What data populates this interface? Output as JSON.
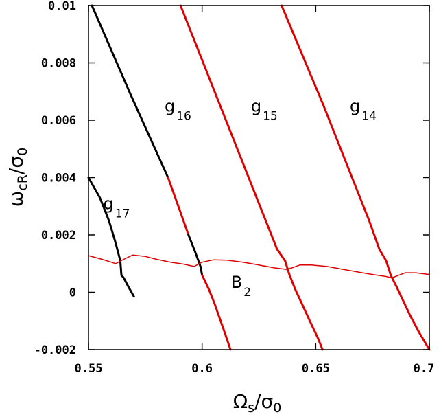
{
  "chart_data": {
    "type": "line",
    "xlabel": {
      "main": "Ω",
      "sub": "s",
      "den": "σ",
      "den_sub": "0"
    },
    "ylabel": {
      "main": "ω",
      "sub": "cR",
      "den": "σ",
      "den_sub": "0"
    },
    "xlim": [
      0.55,
      0.7
    ],
    "ylim": [
      -0.002,
      0.01
    ],
    "x_ticks": [
      0.55,
      0.6,
      0.65,
      0.7
    ],
    "x_tick_labels": [
      "0.55",
      "0.6",
      "0.65",
      "0.7"
    ],
    "y_ticks": [
      -0.002,
      0,
      0.002,
      0.004,
      0.006,
      0.008,
      0.01
    ],
    "y_tick_labels": [
      "-0.002",
      "0",
      "0.002",
      "0.004",
      "0.006",
      "0.008",
      "0.01"
    ],
    "grid": false,
    "legend": "none",
    "colors": {
      "stable": "#000000",
      "unstable": "#dd0000",
      "axis": "#000000"
    },
    "series": [
      {
        "id": "g17",
        "segments": [
          {
            "color": "#000000",
            "points": [
              [
                0.55,
                0.004
              ],
              [
                0.555,
                0.0033
              ],
              [
                0.559,
                0.0025
              ],
              [
                0.562,
                0.0017
              ],
              [
                0.564,
                0.0011
              ],
              [
                0.5645,
                0.0006
              ],
              [
                0.5655,
                0.0005
              ],
              [
                0.5675,
                0.0002
              ],
              [
                0.57,
                -0.00015
              ]
            ]
          }
        ]
      },
      {
        "id": "g16",
        "segments": [
          {
            "color": "#000000",
            "points": [
              [
                0.5515,
                0.01
              ],
              [
                0.5685,
                0.0069
              ],
              [
                0.585,
                0.004
              ]
            ]
          },
          {
            "color": "#dd0000",
            "points": [
              [
                0.585,
                0.004
              ],
              [
                0.59,
                0.0029
              ],
              [
                0.594,
                0.002
              ]
            ]
          },
          {
            "color": "#000000",
            "points": [
              [
                0.594,
                0.002
              ],
              [
                0.597,
                0.0014
              ],
              [
                0.5993,
                0.0009
              ],
              [
                0.6,
                0.0006
              ]
            ]
          },
          {
            "color": "#dd0000",
            "points": [
              [
                0.6,
                0.0006
              ],
              [
                0.603,
                0.0001
              ],
              [
                0.6055,
                -0.0004
              ],
              [
                0.6095,
                -0.0013
              ],
              [
                0.6125,
                -0.002
              ]
            ]
          }
        ]
      },
      {
        "id": "g15",
        "segments": [
          {
            "color": "#dd0000",
            "points": [
              [
                0.5905,
                0.01
              ],
              [
                0.6075,
                0.0066
              ],
              [
                0.621,
                0.0039
              ],
              [
                0.628,
                0.0025
              ],
              [
                0.633,
                0.0015
              ],
              [
                0.6365,
                0.0011
              ],
              [
                0.6385,
                0.0006
              ],
              [
                0.641,
                0.0001
              ],
              [
                0.6445,
                -0.0005
              ],
              [
                0.648,
                -0.0011
              ],
              [
                0.651,
                -0.0016
              ],
              [
                0.653,
                -0.002
              ]
            ]
          }
        ]
      },
      {
        "id": "g14",
        "segments": [
          {
            "color": "#dd0000",
            "points": [
              [
                0.635,
                0.01
              ],
              [
                0.6535,
                0.0065
              ],
              [
                0.666,
                0.004
              ],
              [
                0.6735,
                0.0025
              ],
              [
                0.678,
                0.0015
              ],
              [
                0.681,
                0.0011
              ],
              [
                0.683,
                0.0006
              ],
              [
                0.6855,
                0.0002
              ],
              [
                0.6885,
                -0.0003
              ],
              [
                0.6915,
                -0.0008
              ],
              [
                0.6955,
                -0.0014
              ],
              [
                0.6985,
                -0.0018
              ],
              [
                0.7,
                -0.002
              ]
            ]
          }
        ]
      },
      {
        "id": "B2",
        "thin": true,
        "segments": [
          {
            "color": "#dd0000",
            "points": [
              [
                0.55,
                0.00128
              ],
              [
                0.556,
                0.00115
              ],
              [
                0.562,
                0.001
              ],
              [
                0.5655,
                0.00115
              ],
              [
                0.5695,
                0.0013
              ],
              [
                0.575,
                0.00125
              ],
              [
                0.58,
                0.00115
              ],
              [
                0.586,
                0.00105
              ],
              [
                0.592,
                0.00098
              ],
              [
                0.5965,
                0.0009
              ],
              [
                0.6,
                0.00105
              ],
              [
                0.605,
                0.00113
              ],
              [
                0.611,
                0.00112
              ],
              [
                0.618,
                0.00105
              ],
              [
                0.625,
                0.00095
              ],
              [
                0.632,
                0.00085
              ],
              [
                0.637,
                0.0008
              ],
              [
                0.6395,
                0.00085
              ],
              [
                0.643,
                0.00095
              ],
              [
                0.648,
                0.00095
              ],
              [
                0.655,
                0.0009
              ],
              [
                0.662,
                0.0008
              ],
              [
                0.669,
                0.0007
              ],
              [
                0.675,
                0.00062
              ],
              [
                0.681,
                0.00055
              ],
              [
                0.6835,
                0.0005
              ],
              [
                0.686,
                0.00058
              ],
              [
                0.6895,
                0.00068
              ],
              [
                0.694,
                0.00068
              ],
              [
                0.7,
                0.00062
              ]
            ]
          }
        ]
      }
    ],
    "annotations": [
      {
        "main": "g",
        "sub": "17",
        "x": 0.5565,
        "y": 0.0029
      },
      {
        "main": "g",
        "sub": "16",
        "x": 0.5835,
        "y": 0.0063
      },
      {
        "main": "g",
        "sub": "15",
        "x": 0.6215,
        "y": 0.0063
      },
      {
        "main": "g",
        "sub": "14",
        "x": 0.665,
        "y": 0.0063
      },
      {
        "main": "B",
        "sub": "2",
        "x": 0.6127,
        "y": 0.00015
      }
    ]
  }
}
